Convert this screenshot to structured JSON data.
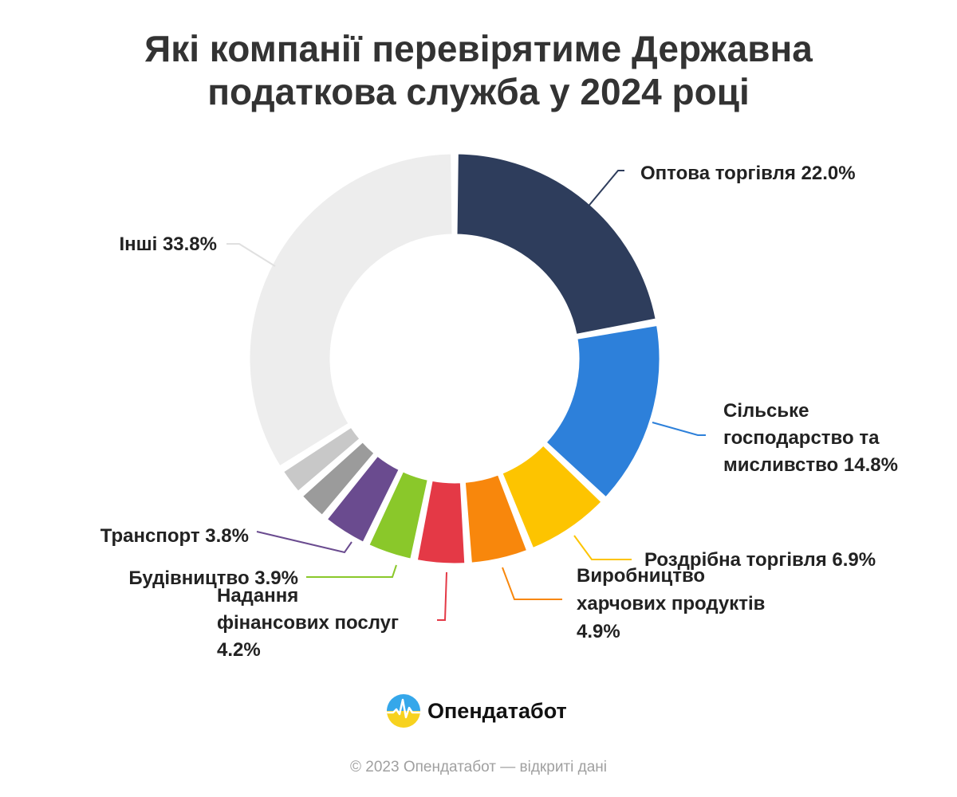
{
  "title": {
    "line1": "Які компанії перевірятиме Державна",
    "line2": "податкова служба у 2024 році"
  },
  "chart_data": {
    "type": "pie",
    "variant": "donut",
    "title": "Які компанії перевірятиме Державна податкова служба у 2024 році",
    "unit": "%",
    "slices": [
      {
        "label": "Оптова торгівля",
        "value": 22.0,
        "color": "#2e3d5c",
        "label_lines": [
          "Оптова торгівля 22.0%"
        ]
      },
      {
        "label": "Сільське господарство та мисливство",
        "value": 14.8,
        "color": "#2d80da",
        "label_lines": [
          "Сільське",
          "господарство та",
          "мисливство 14.8%"
        ]
      },
      {
        "label": "Роздрібна торгівля",
        "value": 6.9,
        "color": "#fdc400",
        "label_lines": [
          "Роздрібна торгівля 6.9%"
        ]
      },
      {
        "label": "Виробництво харчових продуктів",
        "value": 4.9,
        "color": "#f8870c",
        "label_lines": [
          "Виробництво",
          "харчових продуктів",
          "4.9%"
        ]
      },
      {
        "label": "Надання фінансових послуг",
        "value": 4.2,
        "color": "#e43946",
        "label_lines": [
          "Надання",
          "фінансових послуг",
          "4.2%"
        ]
      },
      {
        "label": "Будівництво",
        "value": 3.9,
        "color": "#8ac82a",
        "label_lines": [
          "Будівництво 3.9%"
        ]
      },
      {
        "label": "Транспорт",
        "value": 3.8,
        "color": "#6a4b8f",
        "label_lines": [
          "Транспорт 3.8%"
        ]
      },
      {
        "label": "",
        "value": 2.6,
        "color": "#9b9b9b",
        "label_lines": []
      },
      {
        "label": "",
        "value": 2.4,
        "color": "#c8c8c8",
        "label_lines": []
      },
      {
        "label": "Інші",
        "value": 33.8,
        "color": "#ededed",
        "label_lines": [
          "Інші 33.8%"
        ]
      }
    ]
  },
  "brand": {
    "name": "Опендатабот",
    "logo_icon": "opendatabot-logo-icon"
  },
  "footer": {
    "text": "© 2023 Опендатабот — відкриті дані"
  }
}
